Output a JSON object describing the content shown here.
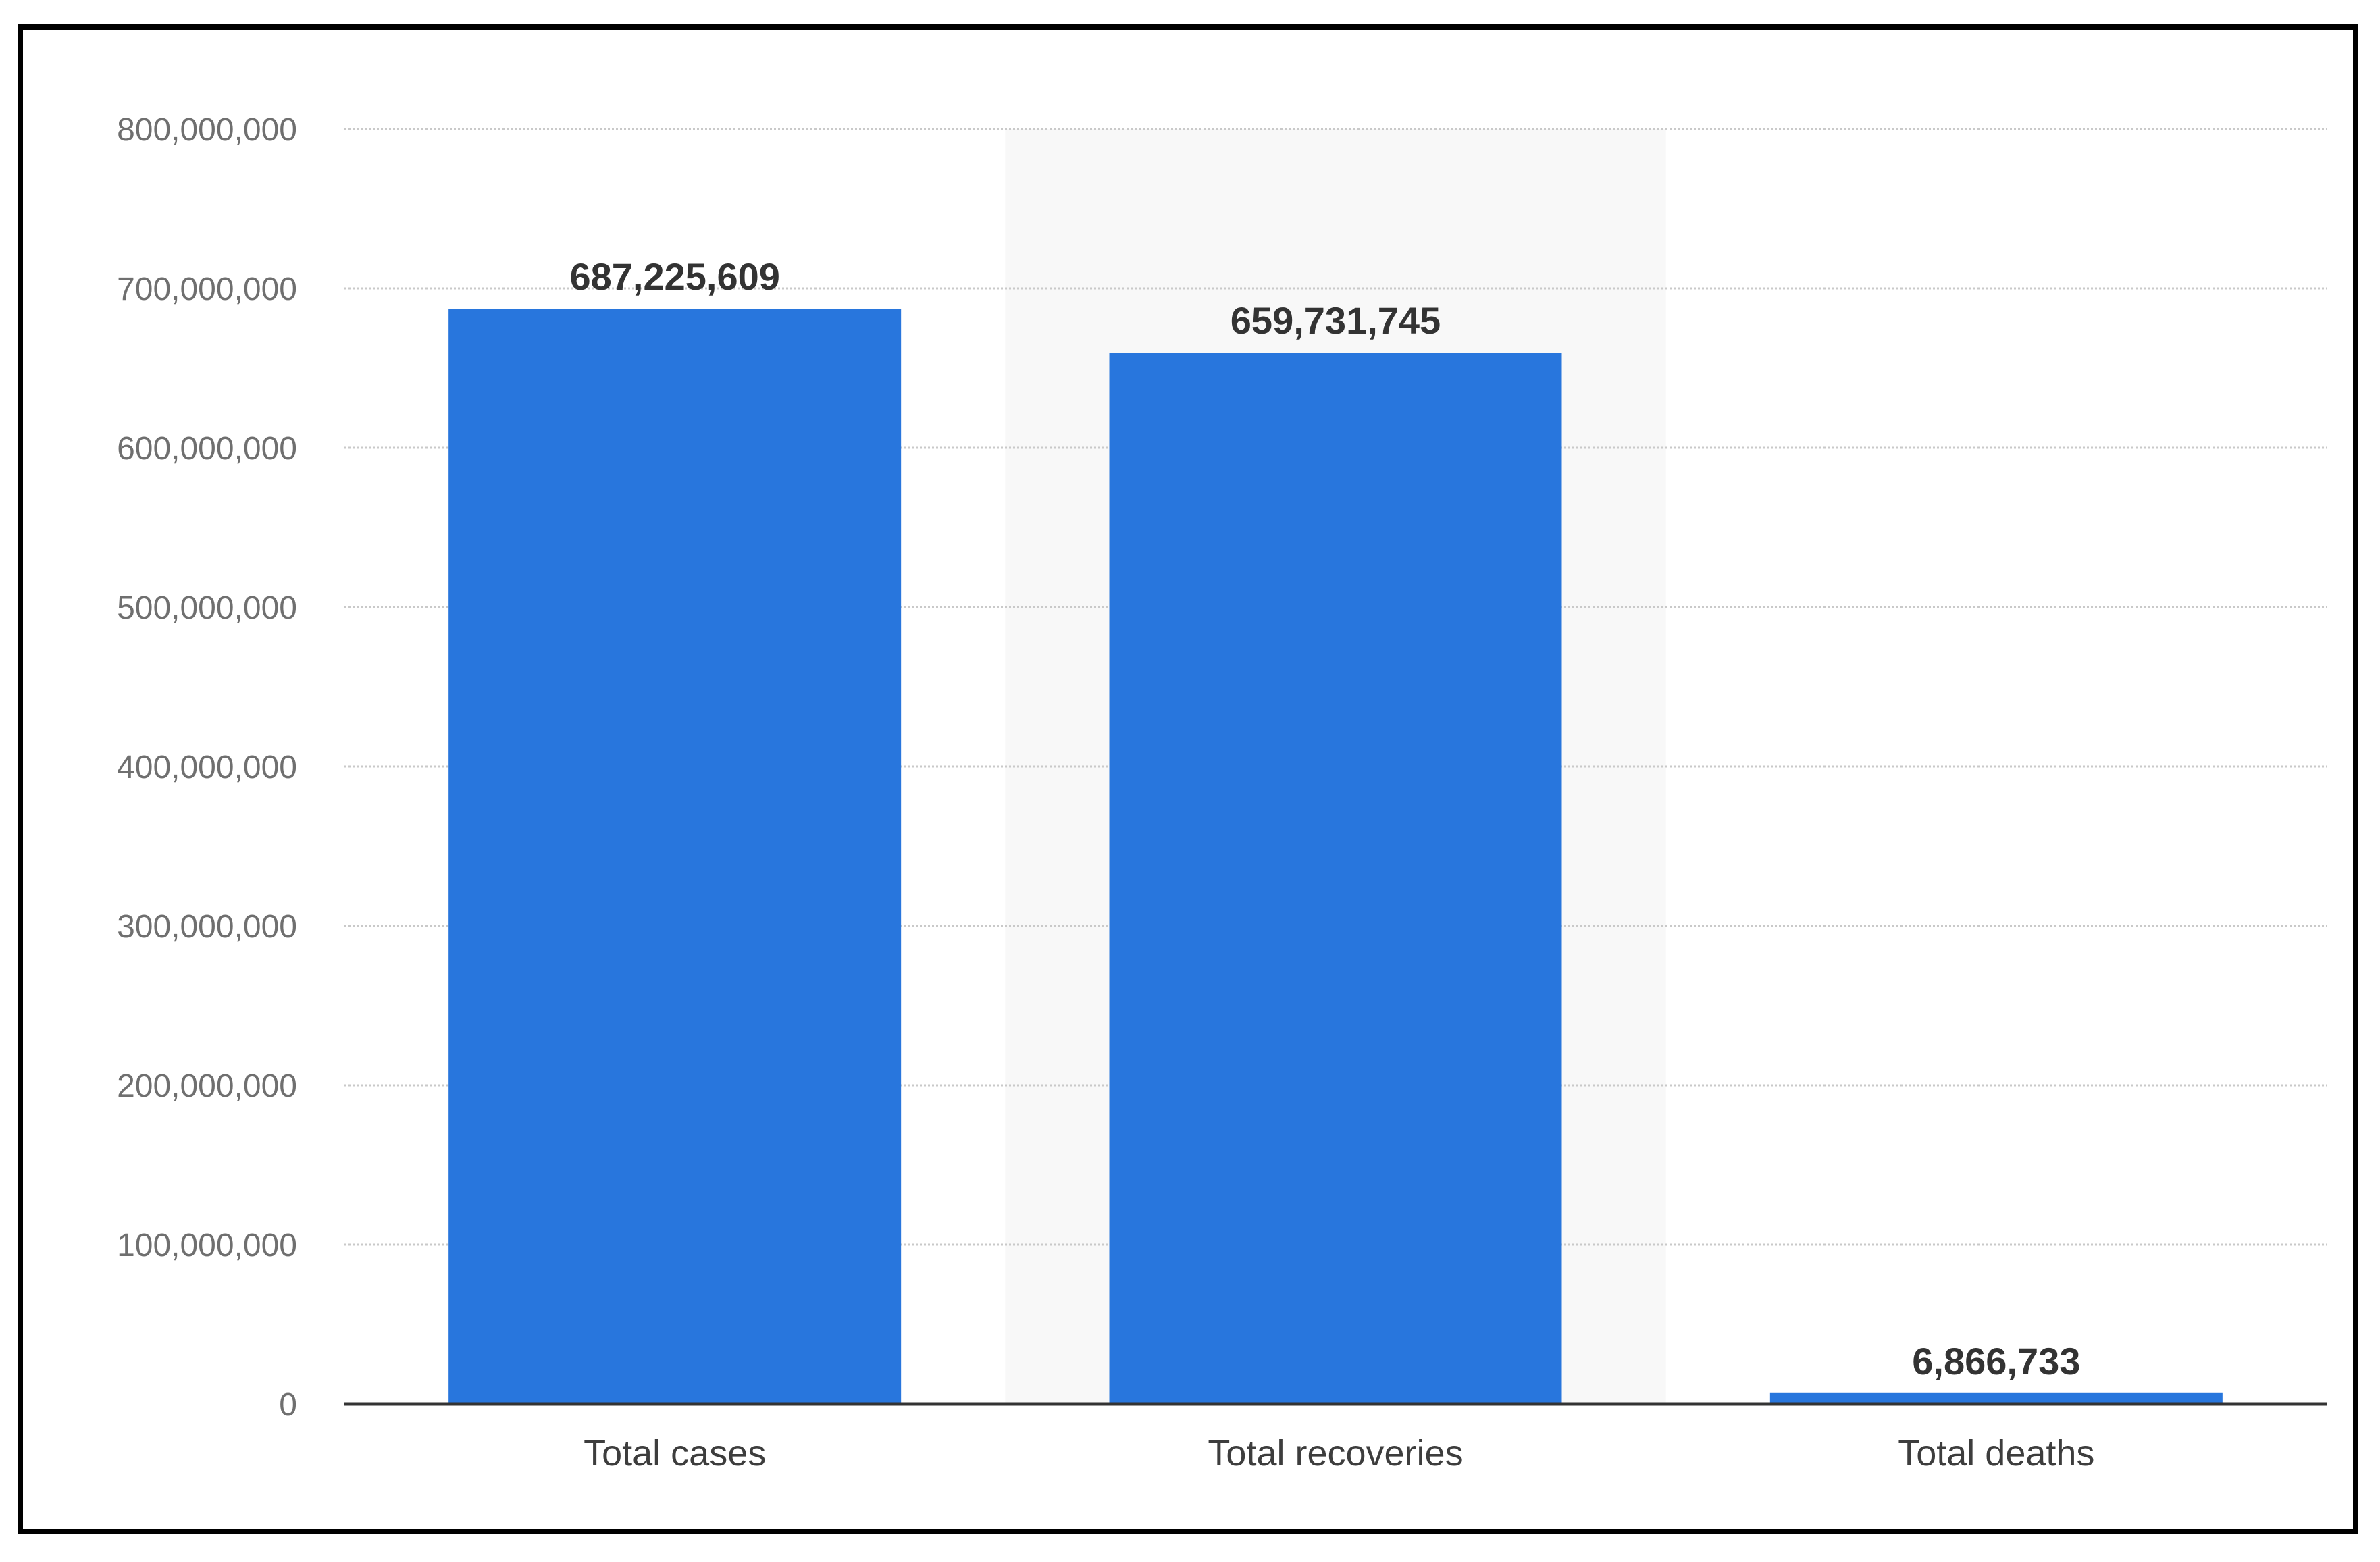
{
  "chart_data": {
    "type": "bar",
    "title": "",
    "xlabel": "",
    "ylabel": "",
    "categories": [
      "Total cases",
      "Total recoveries",
      "Total deaths"
    ],
    "values": [
      687225609,
      659731745,
      6866733
    ],
    "value_labels": [
      "687,225,609",
      "659,731,745",
      "6,866,733"
    ],
    "ylim": [
      0,
      800000000
    ],
    "yticks": [
      0,
      100000000,
      200000000,
      300000000,
      400000000,
      500000000,
      600000000,
      700000000,
      800000000
    ],
    "ytick_labels": [
      "0",
      "100,000,000",
      "200,000,000",
      "300,000,000",
      "400,000,000",
      "500,000,000",
      "600,000,000",
      "700,000,000",
      "800,000,000"
    ],
    "grid": true,
    "highlighted_category": "Total recoveries",
    "colors": {
      "bar": "#2876dd",
      "grid": "#c9c9c9",
      "axis": "#333333",
      "highlight_band": "#f8f8f8"
    }
  }
}
